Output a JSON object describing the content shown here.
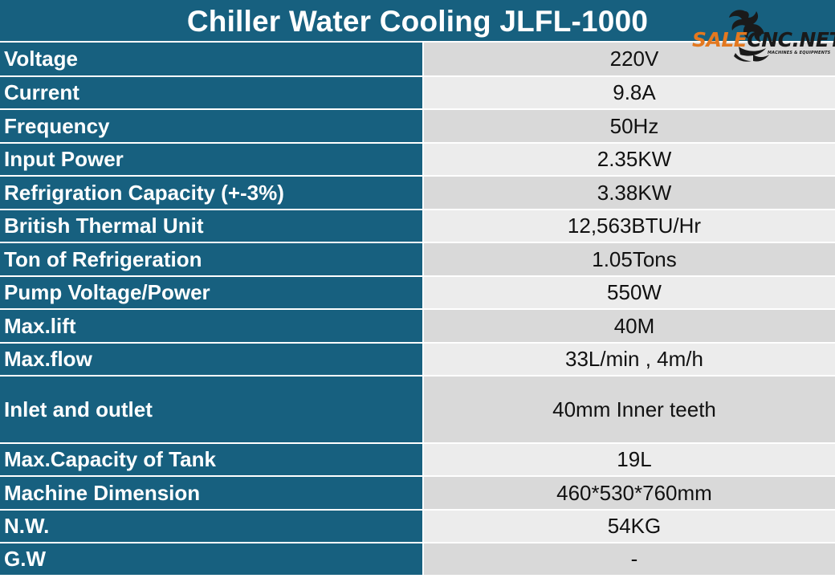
{
  "title": "Chiller Water Cooling JLFL-1000",
  "logo": {
    "word_orange": "SALE",
    "word_dark": "CNC.NET",
    "tagline": "MACHINES & EQUIPMENTS",
    "icon": "dragon-logo-icon"
  },
  "colors": {
    "header_bg": "#17607f",
    "value_bg_odd": "#d9d9d9",
    "value_bg_even": "#ececec",
    "logo_orange": "#e3781f"
  },
  "specs": [
    {
      "label": "Voltage",
      "value": "220V"
    },
    {
      "label": "Current",
      "value": "9.8A"
    },
    {
      "label": "Frequency",
      "value": "50Hz"
    },
    {
      "label": "Input Power",
      "value": "2.35KW"
    },
    {
      "label": "Refrigration Capacity (+-3%)",
      "value": "3.38KW"
    },
    {
      "label": "British Thermal Unit",
      "value": "12,563BTU/Hr"
    },
    {
      "label": "Ton of Refrigeration",
      "value": "1.05Tons"
    },
    {
      "label": "Pump Voltage/Power",
      "value": "550W"
    },
    {
      "label": "Max.lift",
      "value": "40M"
    },
    {
      "label": "Max.flow",
      "value": "33L/min , 4m/h"
    },
    {
      "label": "Inlet and outlet",
      "value": "40mm Inner teeth"
    },
    {
      "label": "Max.Capacity of Tank",
      "value": "19L"
    },
    {
      "label": "Machine Dimension",
      "value": "460*530*760mm"
    },
    {
      "label": "N.W.",
      "value": "54KG"
    },
    {
      "label": "G.W",
      "value": "-"
    }
  ]
}
